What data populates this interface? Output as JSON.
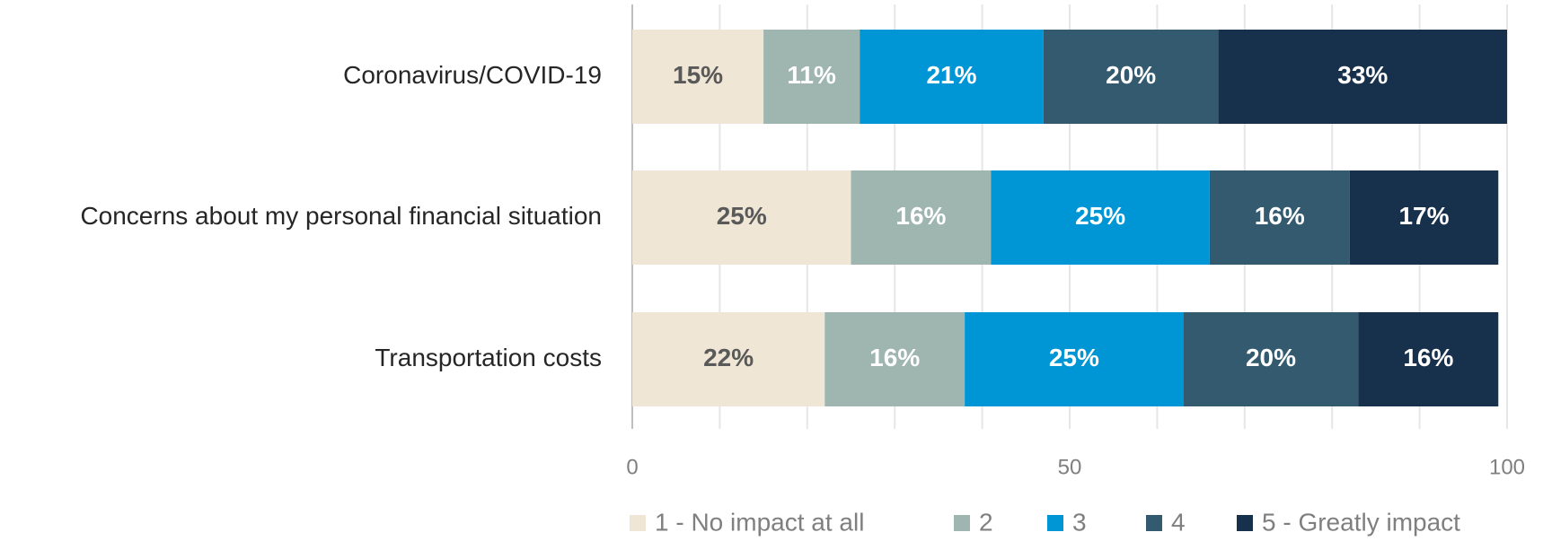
{
  "chart_data": {
    "type": "stacked-barh",
    "categories": [
      "Coronavirus/COVID-19",
      "Concerns about my personal financial situation",
      "Transportation costs"
    ],
    "series": [
      {
        "name": "1 - No impact at all",
        "color": "#efe6d5",
        "label_color": "#595959",
        "values": [
          15,
          25,
          22
        ],
        "value_labels": [
          "15%",
          "25%",
          "22%"
        ]
      },
      {
        "name": "2",
        "color": "#9fb5b0",
        "label_color": "#ffffff",
        "values": [
          11,
          16,
          16
        ],
        "value_labels": [
          "11%",
          "16%",
          "16%"
        ]
      },
      {
        "name": "3",
        "color": "#0096d6",
        "label_color": "#ffffff",
        "values": [
          21,
          25,
          25
        ],
        "value_labels": [
          "21%",
          "25%",
          "25%"
        ]
      },
      {
        "name": "4",
        "color": "#335a6f",
        "label_color": "#ffffff",
        "values": [
          20,
          16,
          20
        ],
        "value_labels": [
          "20%",
          "16%",
          "20%"
        ]
      },
      {
        "name": "5 - Greatly impact",
        "color": "#17304b",
        "label_color": "#ffffff",
        "values": [
          33,
          17,
          16
        ],
        "value_labels": [
          "33%",
          "17%",
          "16%"
        ]
      }
    ],
    "xlim": [
      0,
      100
    ],
    "xticks": [
      0,
      50,
      100
    ],
    "xgrid": [
      0,
      10,
      20,
      30,
      40,
      50,
      60,
      70,
      80,
      90,
      100
    ],
    "legend": "bottom"
  }
}
